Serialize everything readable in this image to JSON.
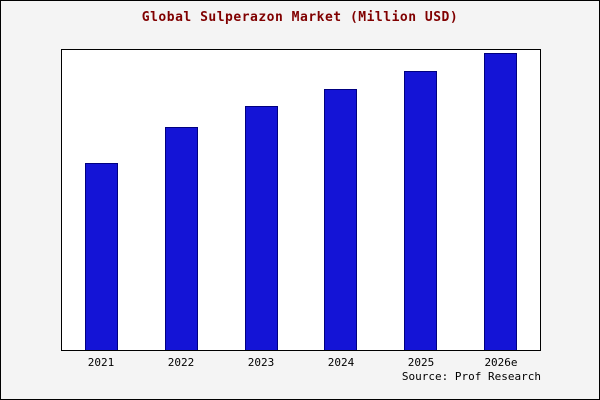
{
  "page": {
    "title_color": "#800000",
    "background_color": "#f4f4f4",
    "plot_background_color": "#ffffff"
  },
  "chart_data": {
    "type": "bar",
    "title": "Global Sulperazon Market (Million USD)",
    "categories": [
      "2021",
      "2022",
      "2023",
      "2024",
      "2025",
      "2026e"
    ],
    "values": [
      63,
      75,
      82,
      88,
      94,
      100
    ],
    "xlabel": "",
    "ylabel": "",
    "ylim": [
      0,
      101
    ],
    "grid": false,
    "legend": false,
    "y_axis_tick_labels_visible": false,
    "values_note": "No y-axis tick labels in image; values estimated relative to 2026e = 100",
    "bar_color": "#1414d6",
    "bar_border_color": "#000080",
    "source": "Source: Prof Research"
  }
}
